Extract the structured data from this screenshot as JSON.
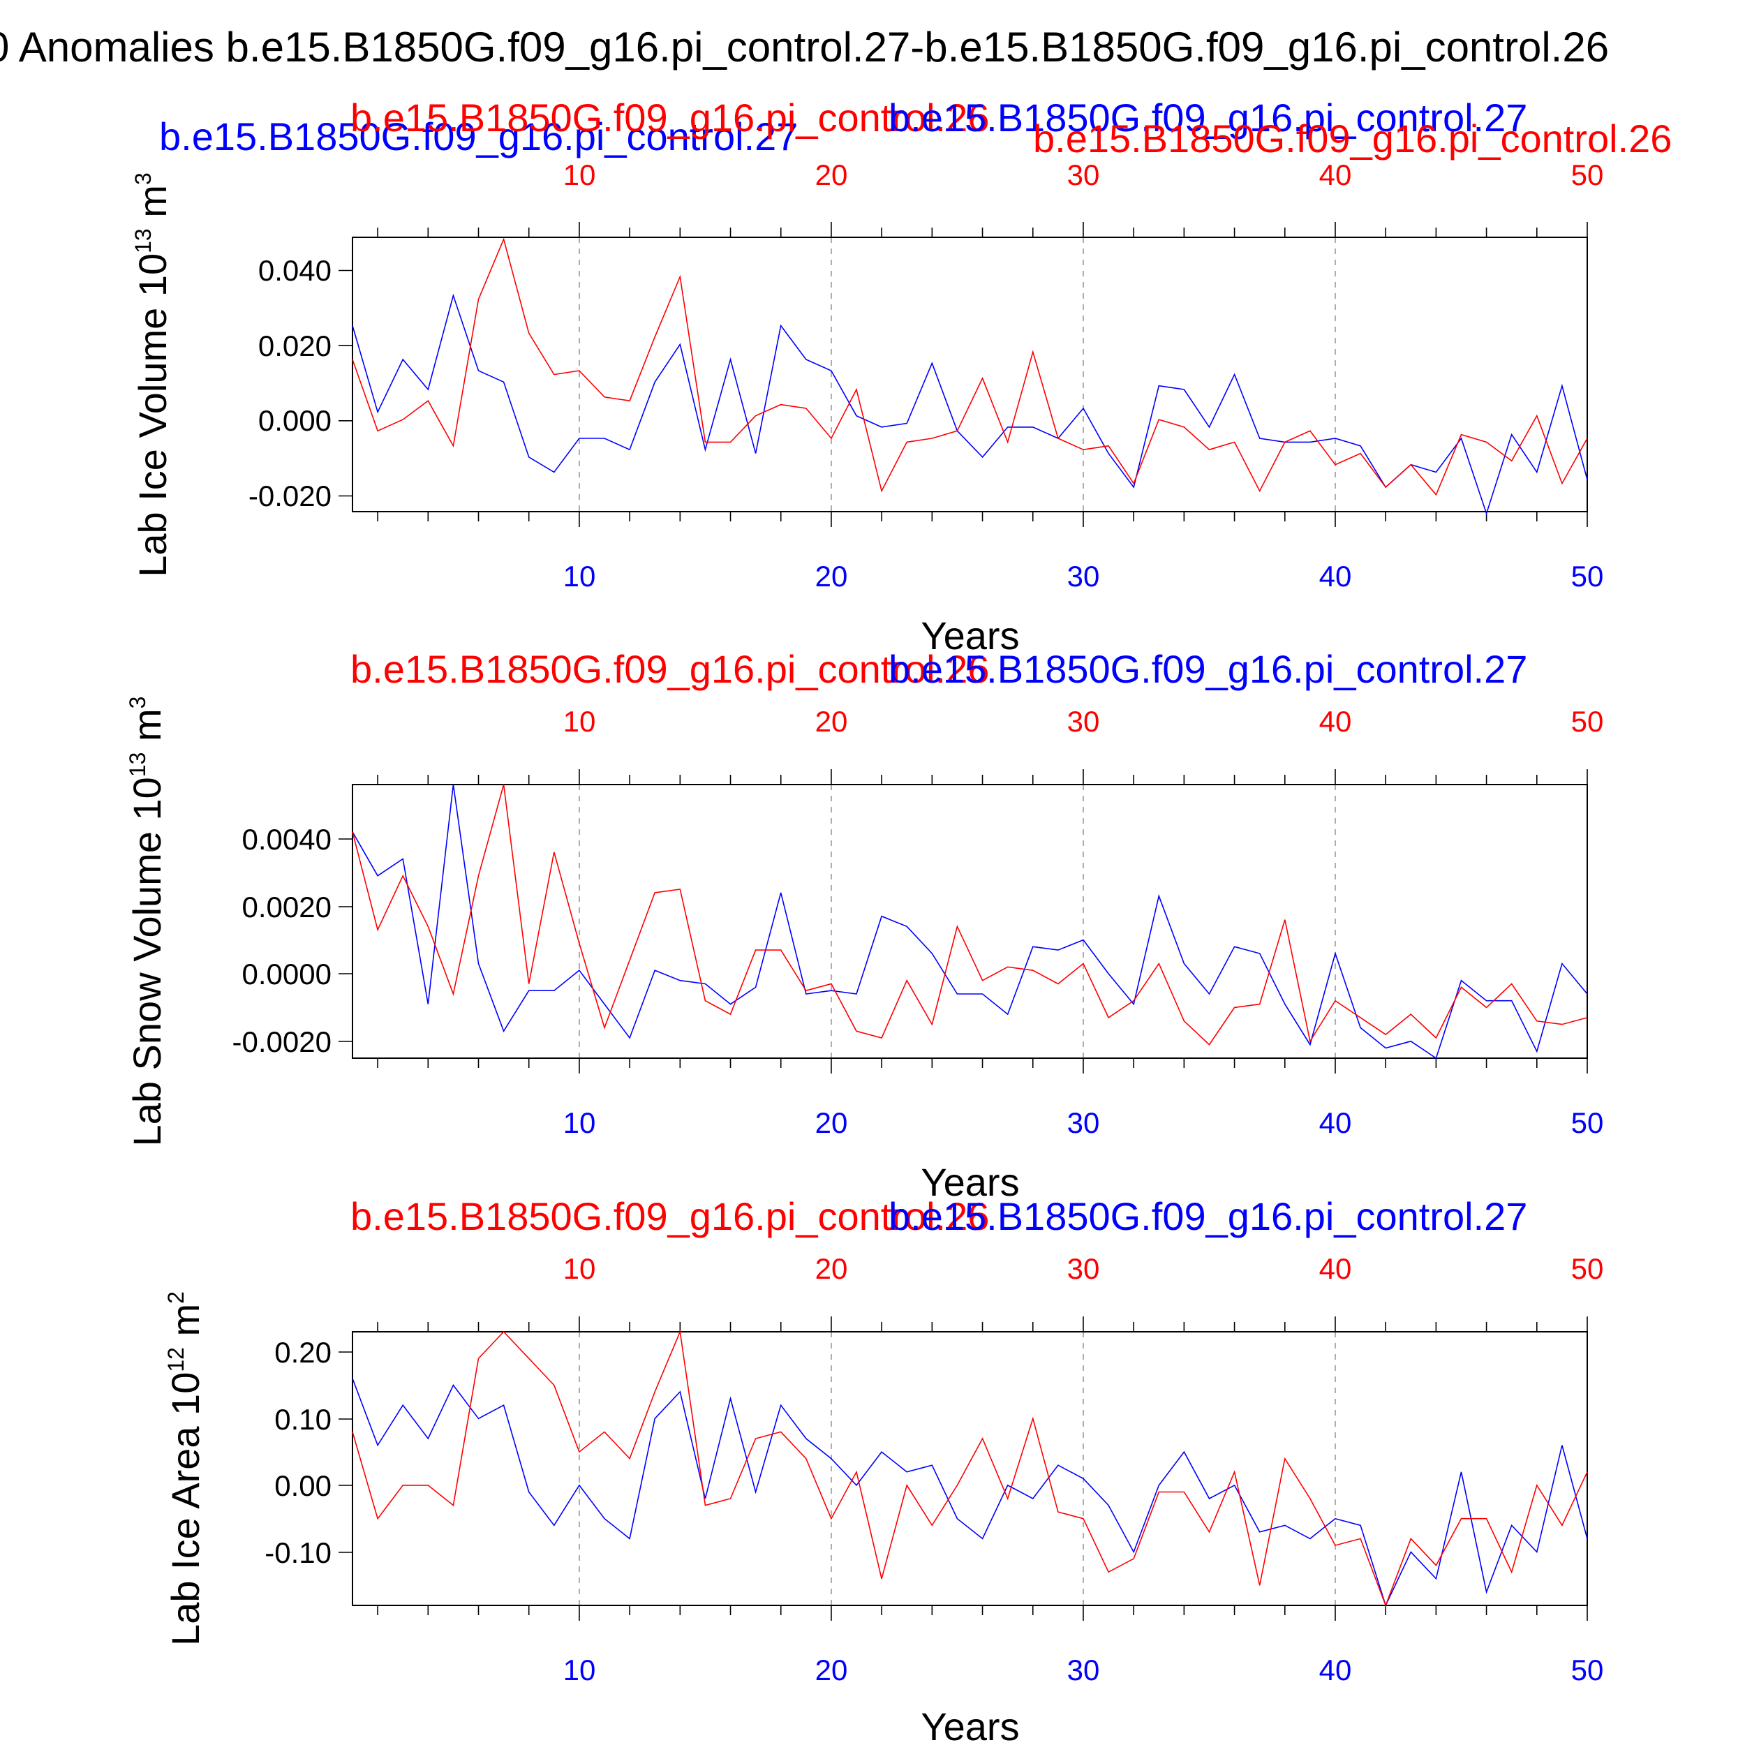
{
  "page_title": "0 Anomalies b.e15.B1850G.f09_g16.pi_control.27-b.e15.B1850G.f09_g16.pi_control.26",
  "colors": {
    "red": "#ff0000",
    "blue": "#0000ff",
    "black": "#000000"
  },
  "chart_data": [
    {
      "type": "line",
      "ylabel": "Lab Ice Volume 10",
      "ylabel_exp": "13",
      "ylabel_unit": " m",
      "ylabel_unit_exp": "3",
      "xlabel": "Years",
      "ylim": [
        -0.0245,
        0.0485
      ],
      "xlim": [
        1,
        50
      ],
      "yticks": [
        -0.02,
        0.0,
        0.02,
        0.04
      ],
      "ytick_labels": [
        "-0.020",
        "0.000",
        "0.020",
        "0.040"
      ],
      "xticks": [
        10,
        20,
        30,
        40,
        50
      ],
      "xtick_labels": [
        "10",
        "20",
        "30",
        "40",
        "50"
      ],
      "legend_left": "b.e15.B1850G.f09_g16.pi_control.27",
      "legend_top_left": "b.e15.B1850G.f09_g16.pi_control.26",
      "legend_top_right": "b.e15.B1850G.f09_g16.pi_control.27",
      "legend_right": "b.e15.B1850G.f09_g16.pi_control.26",
      "series": [
        {
          "name": "b.e15.B1850G.f09_g16.pi_control.27",
          "color": "#0000ff",
          "values": [
            0.025,
            0.002,
            0.016,
            0.008,
            0.033,
            0.013,
            0.01,
            -0.01,
            -0.014,
            -0.005,
            -0.005,
            -0.008,
            0.01,
            0.02,
            -0.008,
            0.016,
            -0.009,
            0.025,
            0.016,
            0.013,
            0.001,
            -0.002,
            -0.001,
            0.015,
            -0.003,
            -0.01,
            -0.002,
            -0.002,
            -0.005,
            0.003,
            -0.009,
            -0.018,
            0.009,
            0.008,
            -0.002,
            0.012,
            -0.005,
            -0.006,
            -0.006,
            -0.005,
            -0.007,
            -0.018,
            -0.012,
            -0.014,
            -0.005,
            -0.025,
            -0.004,
            -0.014,
            0.009,
            -0.016
          ]
        },
        {
          "name": "b.e15.B1850G.f09_g16.pi_control.26",
          "color": "#ff0000",
          "values": [
            0.016,
            -0.003,
            0.0,
            0.005,
            -0.007,
            0.032,
            0.048,
            0.023,
            0.012,
            0.013,
            0.006,
            0.005,
            0.022,
            0.038,
            -0.006,
            -0.006,
            0.001,
            0.004,
            0.003,
            -0.005,
            0.008,
            -0.019,
            -0.006,
            -0.005,
            -0.003,
            0.011,
            -0.006,
            0.018,
            -0.005,
            -0.008,
            -0.007,
            -0.017,
            0.0,
            -0.002,
            -0.008,
            -0.006,
            -0.019,
            -0.006,
            -0.003,
            -0.012,
            -0.009,
            -0.018,
            -0.012,
            -0.02,
            -0.004,
            -0.006,
            -0.011,
            0.001,
            -0.017,
            -0.005
          ]
        }
      ]
    },
    {
      "type": "line",
      "ylabel": "Lab Snow Volume 10",
      "ylabel_exp": "13",
      "ylabel_unit": " m",
      "ylabel_unit_exp": "3",
      "xlabel": "Years",
      "ylim": [
        -0.0025,
        0.0056
      ],
      "xlim": [
        1,
        50
      ],
      "yticks": [
        -0.002,
        0.0,
        0.002,
        0.004
      ],
      "ytick_labels": [
        "-0.0020",
        "0.0000",
        "0.0020",
        "0.0040"
      ],
      "xticks": [
        10,
        20,
        30,
        40,
        50
      ],
      "xtick_labels": [
        "10",
        "20",
        "30",
        "40",
        "50"
      ],
      "legend_top_left": "b.e15.B1850G.f09_g16.pi_control.26",
      "legend_top_right": "b.e15.B1850G.f09_g16.pi_control.27",
      "series": [
        {
          "name": "b.e15.B1850G.f09_g16.pi_control.27",
          "color": "#0000ff",
          "values": [
            0.0042,
            0.0029,
            0.0034,
            -0.0009,
            0.0056,
            0.0003,
            -0.0017,
            -0.0005,
            -0.0005,
            0.0001,
            -0.0009,
            -0.0019,
            0.0001,
            -0.0002,
            -0.0003,
            -0.0009,
            -0.0004,
            0.0024,
            -0.0006,
            -0.0005,
            -0.0006,
            0.0017,
            0.0014,
            0.0006,
            -0.0006,
            -0.0006,
            -0.0012,
            0.0008,
            0.0007,
            0.001,
            0.0,
            -0.0009,
            0.0023,
            0.0003,
            -0.0006,
            0.0008,
            0.0006,
            -0.0009,
            -0.0021,
            0.0006,
            -0.0016,
            -0.0022,
            -0.002,
            -0.0025,
            -0.0002,
            -0.0008,
            -0.0008,
            -0.0023,
            0.0003,
            -0.0006
          ]
        },
        {
          "name": "b.e15.B1850G.f09_g16.pi_control.26",
          "color": "#ff0000",
          "values": [
            0.0042,
            0.0013,
            0.0029,
            0.0014,
            -0.0006,
            0.0029,
            0.0056,
            -0.0003,
            0.0036,
            0.0009,
            -0.0016,
            0.0004,
            0.0024,
            0.0025,
            -0.0008,
            -0.0012,
            0.0007,
            0.0007,
            -0.0005,
            -0.0003,
            -0.0017,
            -0.0019,
            -0.0002,
            -0.0015,
            0.0014,
            -0.0002,
            0.0002,
            0.0001,
            -0.0003,
            0.0003,
            -0.0013,
            -0.0008,
            0.0003,
            -0.0014,
            -0.0021,
            -0.001,
            -0.0009,
            0.0016,
            -0.002,
            -0.0008,
            -0.0013,
            -0.0018,
            -0.0012,
            -0.0019,
            -0.0004,
            -0.001,
            -0.0003,
            -0.0014,
            -0.0015,
            -0.0013
          ]
        }
      ]
    },
    {
      "type": "line",
      "ylabel": "Lab Ice Area 10",
      "ylabel_exp": "12",
      "ylabel_unit": " m",
      "ylabel_unit_exp": "2",
      "xlabel": "Years",
      "ylim": [
        -0.18,
        0.23
      ],
      "xlim": [
        1,
        50
      ],
      "yticks": [
        -0.1,
        0.0,
        0.1,
        0.2
      ],
      "ytick_labels": [
        "-0.10",
        "0.00",
        "0.10",
        "0.20"
      ],
      "xticks": [
        10,
        20,
        30,
        40,
        50
      ],
      "xtick_labels": [
        "10",
        "20",
        "30",
        "40",
        "50"
      ],
      "legend_top_left": "b.e15.B1850G.f09_g16.pi_control.26",
      "legend_top_right": "b.e15.B1850G.f09_g16.pi_control.27",
      "series": [
        {
          "name": "b.e15.B1850G.f09_g16.pi_control.27",
          "color": "#0000ff",
          "values": [
            0.16,
            0.06,
            0.12,
            0.07,
            0.15,
            0.1,
            0.12,
            -0.01,
            -0.06,
            0.0,
            -0.05,
            -0.08,
            0.1,
            0.14,
            -0.02,
            0.13,
            -0.01,
            0.12,
            0.07,
            0.04,
            0.0,
            0.05,
            0.02,
            0.03,
            -0.05,
            -0.08,
            0.0,
            -0.02,
            0.03,
            0.01,
            -0.03,
            -0.1,
            0.0,
            0.05,
            -0.02,
            0.0,
            -0.07,
            -0.06,
            -0.08,
            -0.05,
            -0.06,
            -0.18,
            -0.1,
            -0.14,
            0.02,
            -0.16,
            -0.06,
            -0.1,
            0.06,
            -0.08
          ]
        },
        {
          "name": "b.e15.B1850G.f09_g16.pi_control.26",
          "color": "#ff0000",
          "values": [
            0.08,
            -0.05,
            0.0,
            0.0,
            -0.03,
            0.19,
            0.23,
            0.19,
            0.15,
            0.05,
            0.08,
            0.04,
            0.14,
            0.23,
            -0.03,
            -0.02,
            0.07,
            0.08,
            0.04,
            -0.05,
            0.02,
            -0.14,
            0.0,
            -0.06,
            0.0,
            0.07,
            -0.02,
            0.1,
            -0.04,
            -0.05,
            -0.13,
            -0.11,
            -0.01,
            -0.01,
            -0.07,
            0.02,
            -0.15,
            0.04,
            -0.02,
            -0.09,
            -0.08,
            -0.18,
            -0.08,
            -0.12,
            -0.05,
            -0.05,
            -0.13,
            0.0,
            -0.06,
            0.02
          ]
        }
      ]
    }
  ]
}
